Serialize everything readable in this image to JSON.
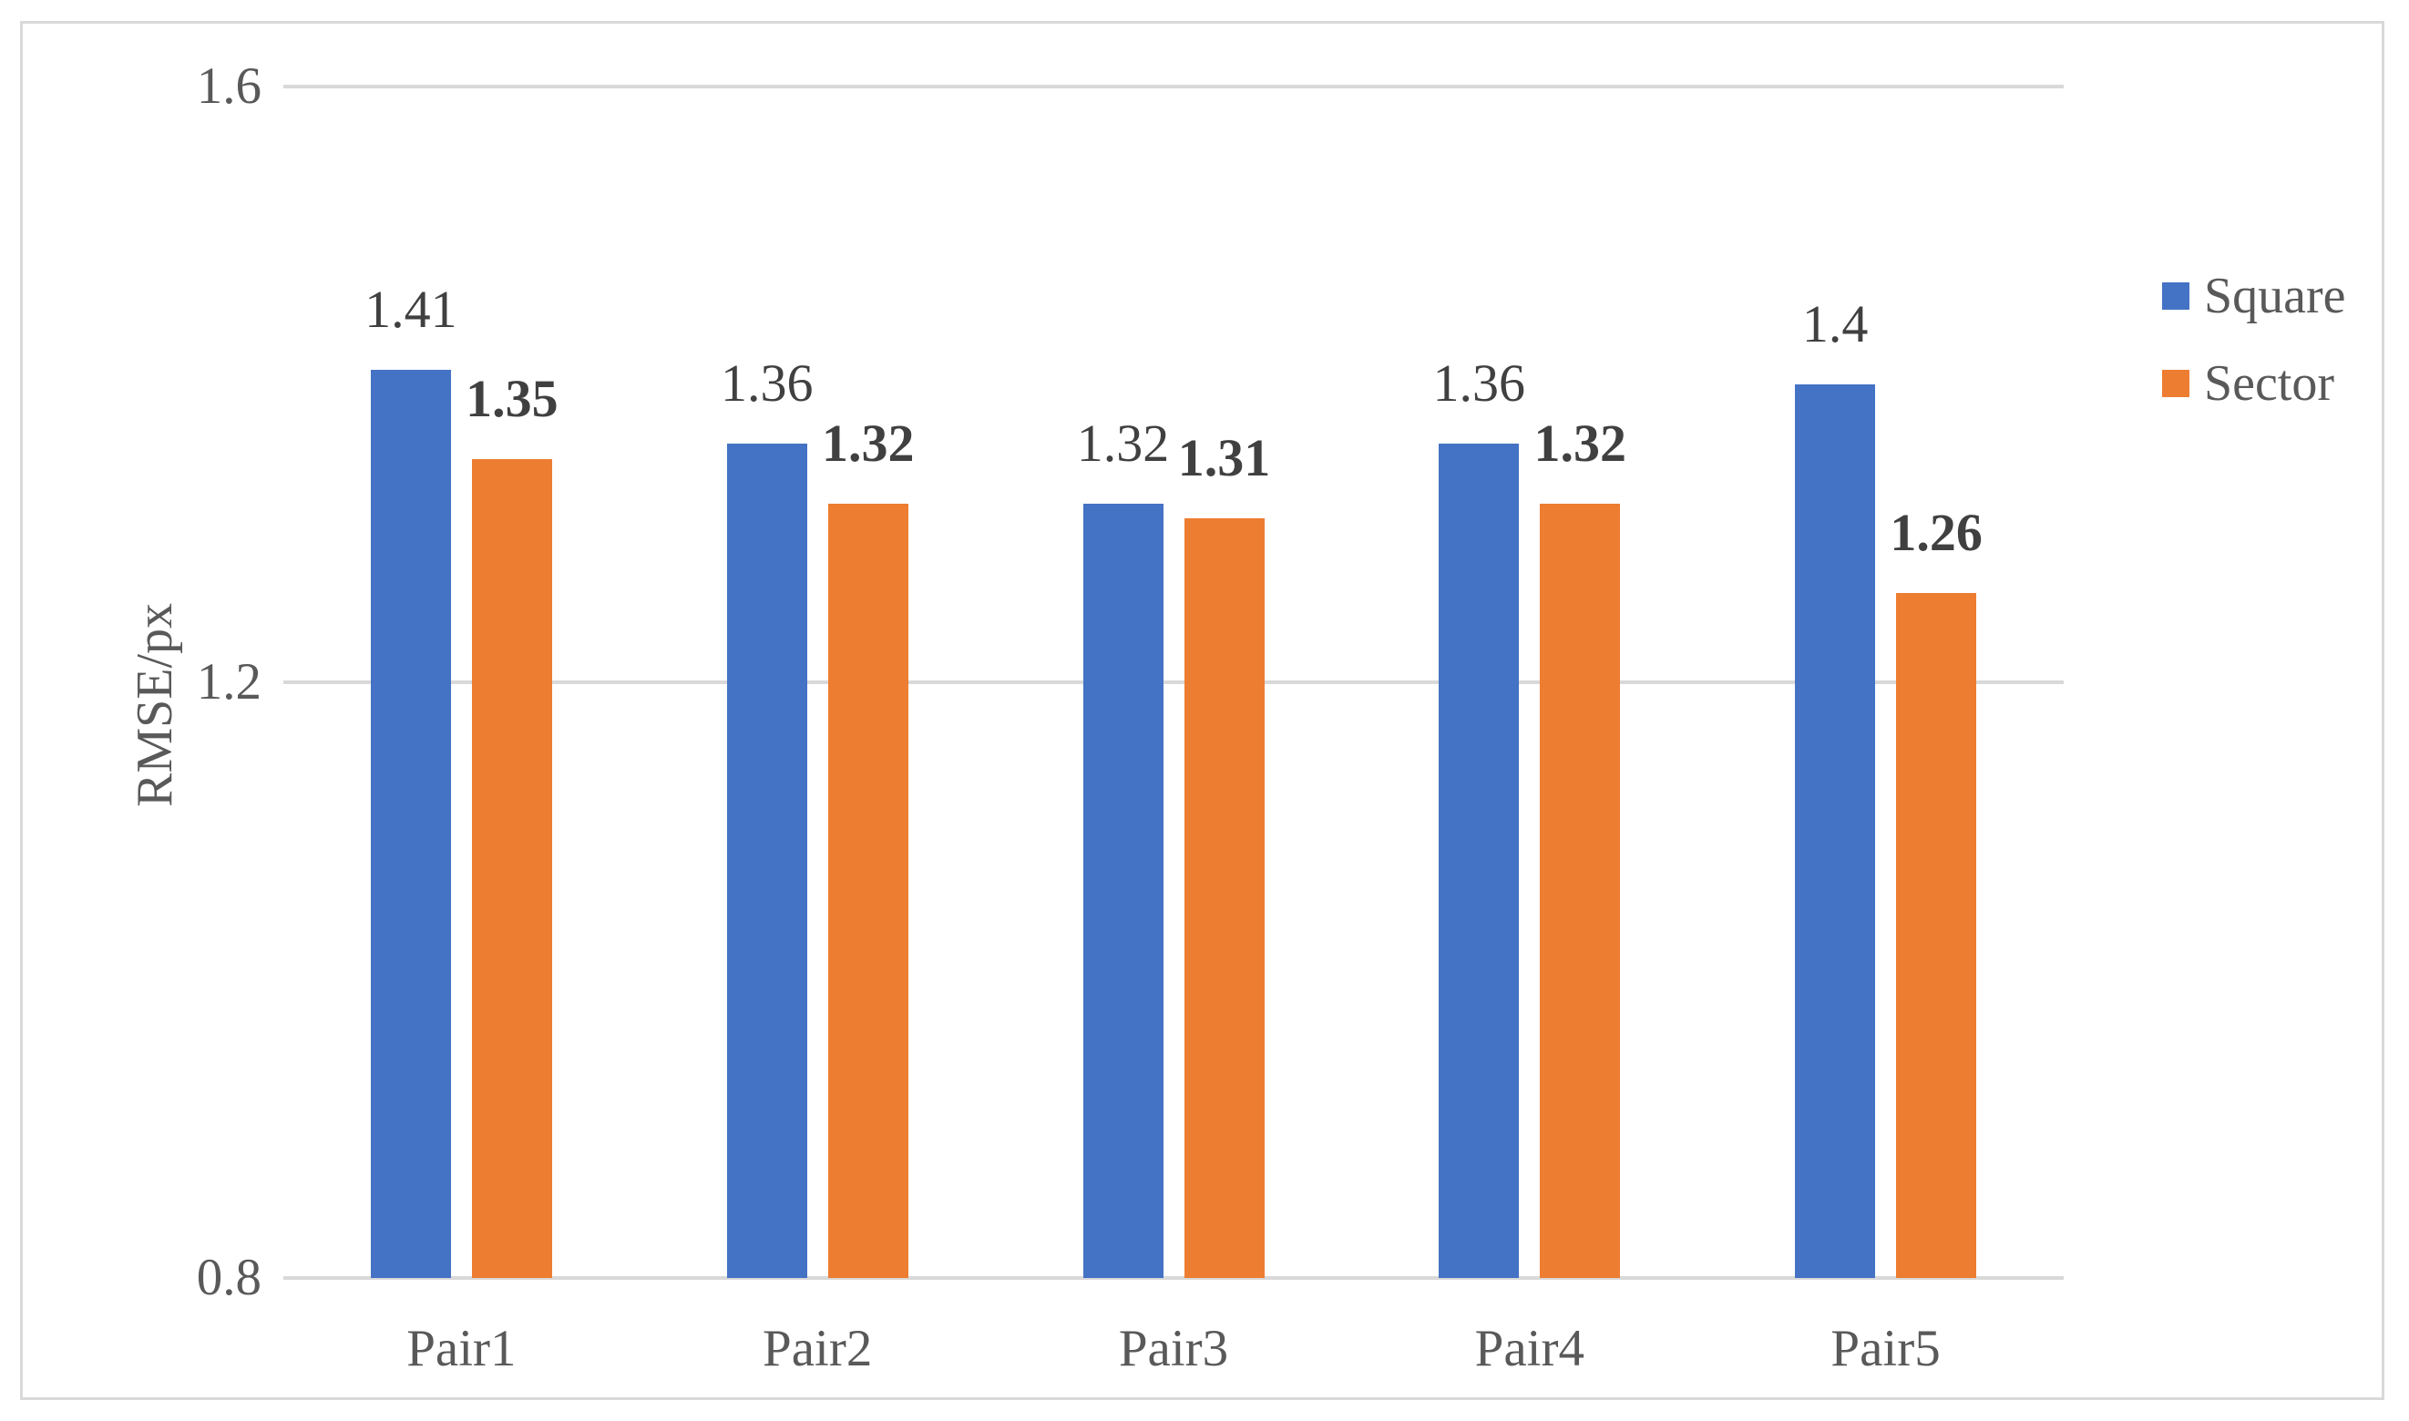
{
  "figure": {
    "background": "#FFFFFF",
    "border_color": "#D9D9D9",
    "gridline_color": "#D9D9D9",
    "axis_text_color": "#595959",
    "value_label_color": "#404040"
  },
  "chart_data": {
    "type": "bar",
    "title": "",
    "xlabel": "",
    "ylabel": "RMSE/px",
    "categories": [
      "Pair1",
      "Pair2",
      "Pair3",
      "Pair4",
      "Pair5"
    ],
    "series": [
      {
        "name": "Square",
        "color": "#4472C4",
        "values": [
          1.41,
          1.36,
          1.32,
          1.36,
          1.4
        ],
        "labels": [
          "1.41",
          "1.36",
          "1.32",
          "1.36",
          "1.4"
        ],
        "label_bold": false
      },
      {
        "name": "Sector",
        "color": "#ED7D31",
        "values": [
          1.35,
          1.32,
          1.31,
          1.32,
          1.26
        ],
        "labels": [
          "1.35",
          "1.32",
          "1.31",
          "1.32",
          "1.26"
        ],
        "label_bold": true
      }
    ],
    "ylim": [
      0.8,
      1.6
    ],
    "yticks": [
      {
        "value": 1.6,
        "label": "1.6"
      },
      {
        "value": 1.2,
        "label": "1.2"
      },
      {
        "value": 0.8,
        "label": "0.8"
      }
    ],
    "grid": "horizontal",
    "legend_position": "right",
    "legend_entries": [
      "Square",
      "Sector"
    ]
  }
}
